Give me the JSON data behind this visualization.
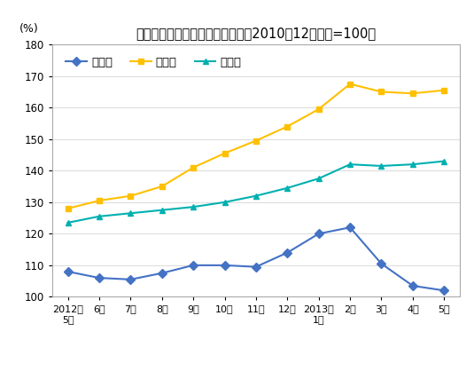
{
  "title": "猪肉、牛肉、羊肉价格变动情况（2010年12月价格=100）",
  "ylabel": "(%)",
  "pork": [
    108.0,
    106.0,
    105.5,
    107.5,
    110.0,
    110.0,
    109.5,
    114.0,
    120.0,
    122.0,
    110.5,
    103.5,
    102.0
  ],
  "beef": [
    128.0,
    130.5,
    132.0,
    135.0,
    141.0,
    145.5,
    149.5,
    154.0,
    159.5,
    167.5,
    165.0,
    164.5,
    165.5
  ],
  "lamb": [
    123.5,
    125.5,
    126.5,
    127.5,
    128.5,
    130.0,
    132.0,
    134.5,
    137.5,
    142.0,
    141.5,
    142.0,
    143.0
  ],
  "pork_color": "#4472C4",
  "beef_color": "#FFC000",
  "lamb_color": "#00B0B0",
  "ylim_min": 100.0,
  "ylim_max": 180.0,
  "yticks": [
    100.0,
    110.0,
    120.0,
    130.0,
    140.0,
    150.0,
    160.0,
    170.0,
    180.0
  ],
  "pork_label": "猪　肉",
  "beef_label": "牛　肉",
  "lamb_label": "羊　肉",
  "bg_color": "#FFFFFF",
  "border_color": "#AAAAAA",
  "grid_color": "#CCCCCC"
}
